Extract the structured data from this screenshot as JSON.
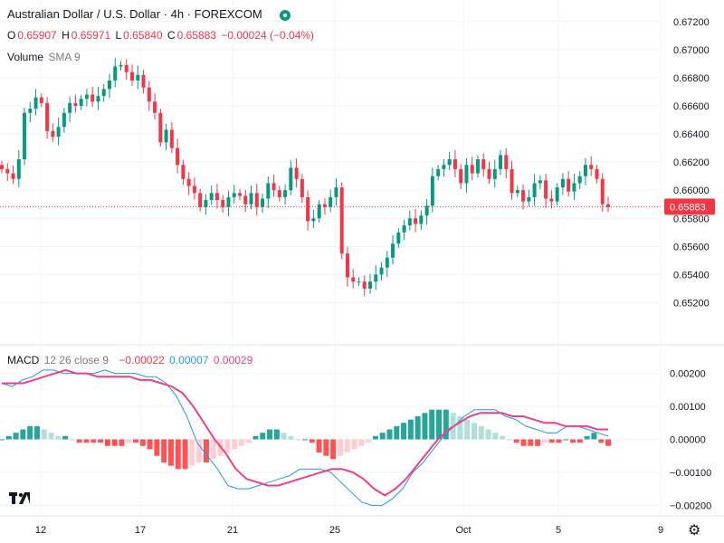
{
  "header": {
    "title": "Australian Dollar / U.S. Dollar · 4h · FOREXCOM",
    "ohlc": {
      "o_label": "O",
      "o": "0.65907",
      "h_label": "H",
      "h": "0.65971",
      "l_label": "L",
      "l": "0.65840",
      "c_label": "C",
      "c": "0.65883",
      "change": "−0.00024 (−0.04%)"
    },
    "volume_label": "Volume",
    "volume_sma": "SMA 9"
  },
  "macd_legend": {
    "name": "MACD",
    "params": "12 26 close 9",
    "hist": "−0.00022",
    "macd": "0.00007",
    "signal": "0.00029"
  },
  "colors": {
    "up": "#089981",
    "down": "#f23645",
    "macd_line": "#2196f3",
    "signal_line": "#f23f82",
    "hist_up_strong": "#26a69a",
    "hist_up_weak": "#b2dfdb",
    "hist_down_strong": "#ff5252",
    "hist_down_weak": "#ffcdd2"
  },
  "icons": [
    "tradingview-logo-icon",
    "settings-gear-icon",
    "market-open-icon"
  ],
  "chart_data": [
    {
      "type": "candlestick",
      "title": "Australian Dollar / U.S. Dollar · 4h · FOREXCOM",
      "ylim": [
        0.651,
        0.6725
      ],
      "y_ticks": [
        "0.67200",
        "0.67000",
        "0.66800",
        "0.66600",
        "0.66400",
        "0.66200",
        "0.66000",
        "0.65800",
        "0.65600",
        "0.65400",
        "0.65200"
      ],
      "x_ticks": [
        "12",
        "17",
        "21",
        "25",
        "Oct",
        "5",
        "9"
      ],
      "last_price": "0.65883",
      "closes": [
        0.6615,
        0.6612,
        0.6608,
        0.6622,
        0.6655,
        0.6658,
        0.6666,
        0.6662,
        0.6642,
        0.6638,
        0.6645,
        0.6655,
        0.6662,
        0.666,
        0.6665,
        0.6668,
        0.6663,
        0.6667,
        0.6672,
        0.6678,
        0.6688,
        0.6689,
        0.6684,
        0.6678,
        0.6682,
        0.6673,
        0.6663,
        0.6655,
        0.6634,
        0.6643,
        0.663,
        0.6618,
        0.6608,
        0.6603,
        0.6598,
        0.6588,
        0.6593,
        0.6598,
        0.6593,
        0.6588,
        0.6595,
        0.6598,
        0.6596,
        0.659,
        0.6598,
        0.6588,
        0.6594,
        0.6605,
        0.66,
        0.6595,
        0.66,
        0.6616,
        0.6608,
        0.6595,
        0.6578,
        0.658,
        0.659,
        0.6588,
        0.6595,
        0.6602,
        0.6555,
        0.6538,
        0.6535,
        0.6535,
        0.653,
        0.6535,
        0.654,
        0.6545,
        0.6552,
        0.6562,
        0.657,
        0.6575,
        0.658,
        0.6576,
        0.6582,
        0.6589,
        0.661,
        0.6615,
        0.6618,
        0.6622,
        0.6615,
        0.6605,
        0.6618,
        0.6612,
        0.6622,
        0.6615,
        0.6608,
        0.6615,
        0.6625,
        0.6615,
        0.6598,
        0.66,
        0.6592,
        0.6595,
        0.6605,
        0.6607,
        0.6594,
        0.6592,
        0.6602,
        0.6608,
        0.6599,
        0.6605,
        0.661,
        0.6618,
        0.6615,
        0.6608,
        0.659,
        0.6588
      ],
      "series": [
        {
          "name": "MACD",
          "values": [
            0.0017,
            0.0016,
            0.0018,
            0.0019,
            0.0021,
            0.0021,
            0.002,
            0.002,
            0.002,
            0.002,
            0.0021,
            0.002,
            0.002,
            0.002,
            0.0019,
            0.0019,
            0.0017,
            0.0013,
            0.0007,
            -0.0001,
            -0.0005,
            -0.0009,
            -0.0014,
            -0.0015,
            -0.0015,
            -0.0014,
            -0.0013,
            -0.0012,
            -0.0011,
            -0.0009,
            -0.0009,
            -0.0009,
            -0.001,
            -0.0013,
            -0.0016,
            -0.0019,
            -0.002,
            -0.002,
            -0.0018,
            -0.0015,
            -0.001,
            -0.0007,
            -0.0003,
            0.0001,
            0.0004,
            0.0007,
            0.0009,
            0.0009,
            0.0009,
            0.0007,
            0.0006,
            0.0004,
            0.0003,
            0.0002,
            0.0002,
            0.0004,
            0.0004,
            0.0003,
            0.0002,
            0.0001
          ]
        },
        {
          "name": "Signal",
          "values": [
            0.0017,
            0.0017,
            0.0017,
            0.0018,
            0.0019,
            0.002,
            0.0021,
            0.002,
            0.002,
            0.0019,
            0.0019,
            0.0019,
            0.0019,
            0.0018,
            0.0018,
            0.0017,
            0.0016,
            0.0014,
            0.001,
            0.0005,
            0.0,
            -0.0004,
            -0.0009,
            -0.0012,
            -0.0013,
            -0.0014,
            -0.0014,
            -0.0013,
            -0.0012,
            -0.0011,
            -0.001,
            -0.0009,
            -0.0009,
            -0.001,
            -0.0012,
            -0.0015,
            -0.0017,
            -0.0015,
            -0.0012,
            -0.0008,
            -0.0004,
            0.0,
            0.0003,
            0.0005,
            0.0007,
            0.0008,
            0.0008,
            0.0008,
            0.0007,
            0.0007,
            0.0006,
            0.0005,
            0.0005,
            0.0004,
            0.0004,
            0.0004,
            0.0003,
            0.0003
          ]
        },
        {
          "name": "Histogram",
          "values": [
            0.0,
            0.0001,
            0.0002,
            0.0003,
            0.0004,
            0.0004,
            0.0003,
            0.0002,
            0.0001,
            0.0001,
            0.0,
            -0.0001,
            -0.0001,
            -0.0001,
            -0.0001,
            -0.0002,
            -0.0002,
            -0.0002,
            -0.0001,
            -0.0001,
            -0.0002,
            -0.0003,
            -0.0005,
            -0.0007,
            -0.0008,
            -0.0009,
            -0.0009,
            -0.0008,
            -0.0007,
            -0.0007,
            -0.0006,
            -0.0005,
            -0.0004,
            -0.0003,
            -0.0002,
            -0.0001,
            0.0001,
            0.0002,
            0.0003,
            0.0003,
            0.0002,
            0.0001,
            0.0,
            0.0,
            -0.0001,
            -0.0004,
            -0.0005,
            -0.0006,
            -0.0005,
            -0.0004,
            -0.0003,
            -0.0002,
            -0.0001,
            0.0001,
            0.0002,
            0.0003,
            0.0004,
            0.0005,
            0.0006,
            0.0007,
            0.0008,
            0.0009,
            0.0009,
            0.0009,
            0.0008,
            0.0007,
            0.0006,
            0.0005,
            0.0004,
            0.0003,
            0.0002,
            0.0001,
            0.0,
            -0.0001,
            -0.0002,
            -0.0002,
            -0.0002,
            -0.0001,
            -0.0001,
            -0.0001,
            0.0,
            -0.0001,
            -0.0001,
            0.0001,
            0.0002,
            -0.0001,
            -0.0002
          ]
        }
      ],
      "macd_ylim": [
        -0.0021,
        0.0024
      ],
      "macd_y_ticks": [
        "0.00200",
        "0.00100",
        "0.00000",
        "−0.00100",
        "−0.00200"
      ]
    }
  ]
}
